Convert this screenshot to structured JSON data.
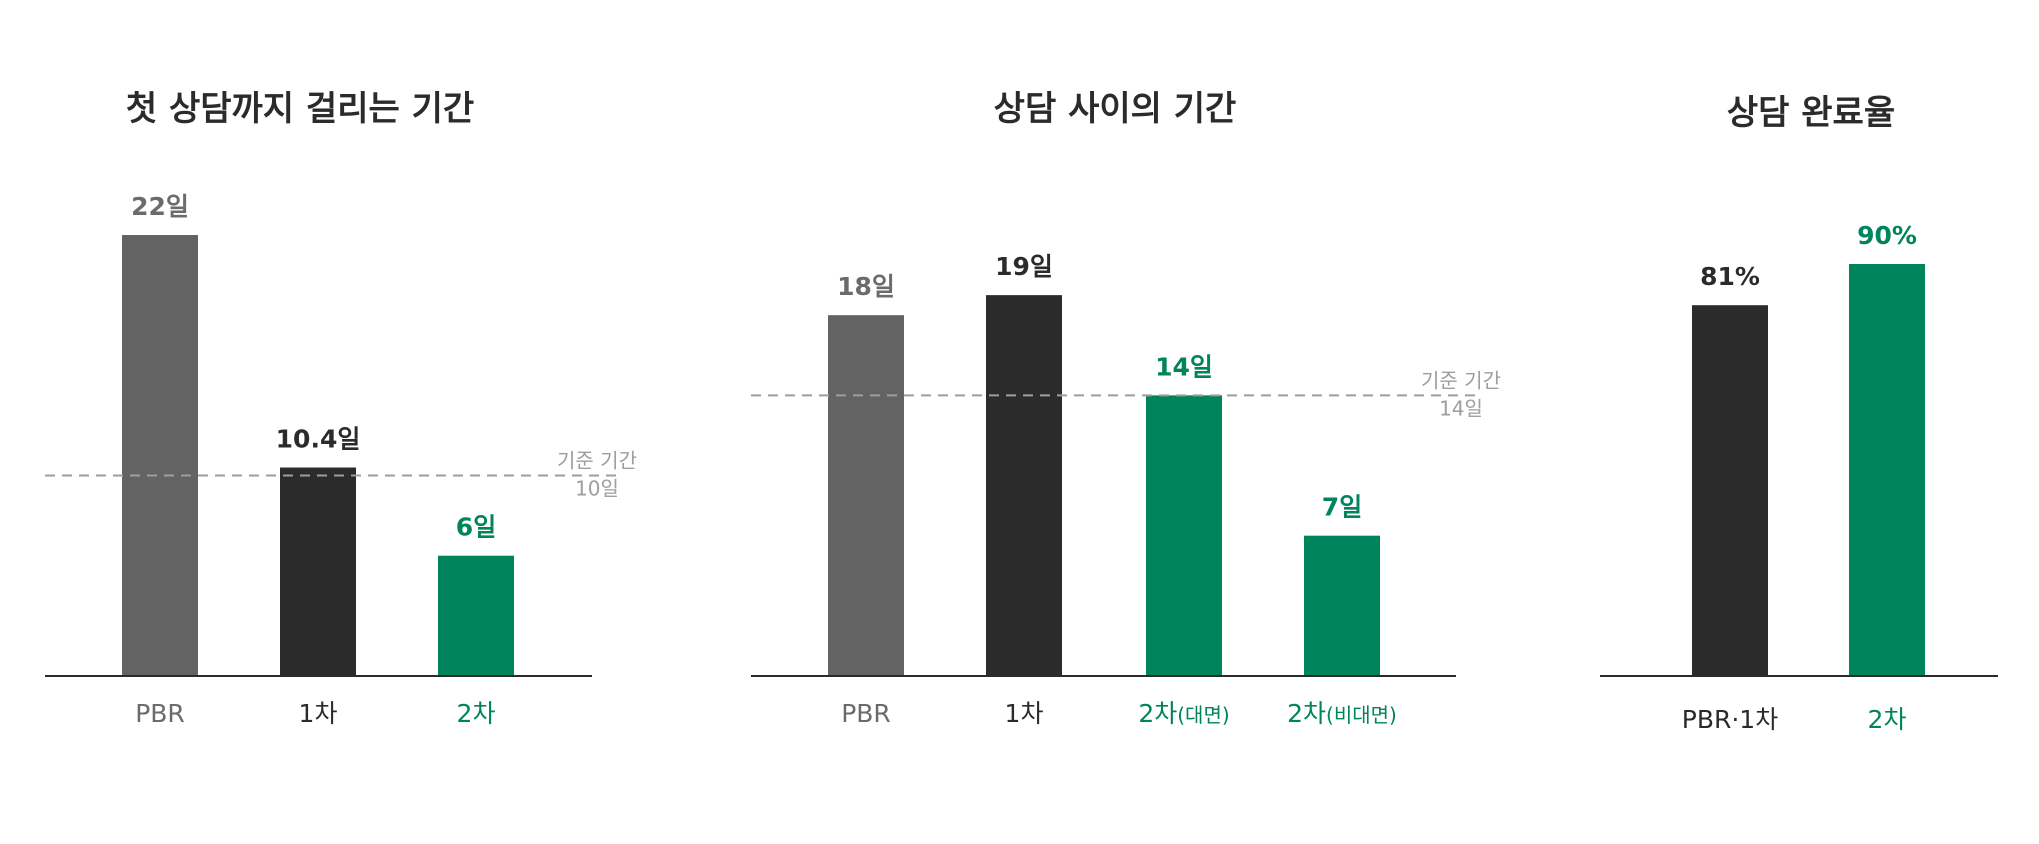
{
  "colors": {
    "gray": "#636363",
    "dark": "#2b2b2b",
    "green": "#00845c",
    "gray_text": "#6b6b6b",
    "axis": "#2b2b2b",
    "ref_line": "#9e9e9e"
  },
  "chart_data": [
    {
      "type": "bar",
      "title": "첫 상담까지 걸리는 기간",
      "unit": "일",
      "categories": [
        "PBR",
        "1차",
        "2차"
      ],
      "values": [
        22,
        10.4,
        6
      ],
      "value_labels": [
        "22일",
        "10.4일",
        "6일"
      ],
      "bar_colors": [
        "gray",
        "dark",
        "green"
      ],
      "label_colors": [
        "gray_text",
        "dark",
        "green"
      ],
      "reference_line": {
        "value": 10,
        "label": "기준 기간",
        "value_label": "10일"
      },
      "ylim": [
        0,
        22
      ]
    },
    {
      "type": "bar",
      "title": "상담 사이의 기간",
      "unit": "일",
      "categories": [
        "PBR",
        "1차",
        "2차",
        "2차"
      ],
      "category_suffix": [
        "",
        "",
        "(대면)",
        "(비대면)"
      ],
      "values": [
        18,
        19,
        14,
        7
      ],
      "value_labels": [
        "18일",
        "19일",
        "14일",
        "7일"
      ],
      "bar_colors": [
        "gray",
        "dark",
        "green",
        "green"
      ],
      "label_colors": [
        "gray_text",
        "dark",
        "green",
        "green"
      ],
      "reference_line": {
        "value": 14,
        "label": "기준 기간",
        "value_label": "14일"
      },
      "ylim": [
        0,
        22
      ]
    },
    {
      "type": "bar",
      "title": "상담 완료율",
      "unit": "%",
      "categories": [
        "PBR·1차",
        "2차"
      ],
      "values": [
        81,
        90
      ],
      "value_labels": [
        "81%",
        "90%"
      ],
      "bar_colors": [
        "dark",
        "green"
      ],
      "label_colors": [
        "dark",
        "green"
      ],
      "ylim": [
        0,
        100
      ]
    }
  ]
}
